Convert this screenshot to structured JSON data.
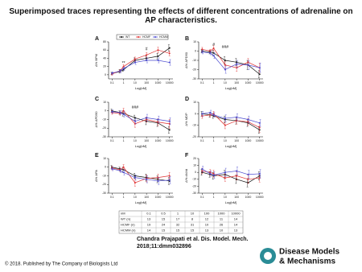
{
  "title": "Superimposed traces representing the effects of different concentrations of adrenaline on AP characteristics.",
  "citation": [
    "Chandra Prajapati et al. Dis. Model. Mech.",
    "2018;11:dmm032896"
  ],
  "copyright": "© 2018. Published by The Company of Biologists Ltd",
  "logo": [
    "Disease Models",
    "& Mechanisms"
  ],
  "table": {
    "header": [
      "nM",
      "0.1",
      "0.5",
      "1",
      "10",
      "100",
      "1000",
      "10000"
    ],
    "rows": [
      [
        "WT (n)",
        "13",
        "15",
        "17",
        "8",
        "12",
        "11",
        "14"
      ],
      [
        "HCMF (n)",
        "19",
        "24",
        "32",
        "31",
        "10",
        "26",
        "14"
      ],
      [
        "HCMM (n)",
        "14",
        "15",
        "15",
        "15",
        "13",
        "10",
        "13"
      ]
    ]
  },
  "chart_data": [
    {
      "type": "line",
      "panel": "A",
      "ylabel": "Δ% BPM",
      "xlabel": "Log[nM]",
      "log_x": true,
      "legend": "top",
      "x": [
        0.1,
        0.5,
        1,
        10,
        100,
        1000,
        10000
      ],
      "xlim": [
        0.05,
        20000
      ],
      "xticks": [
        0.1,
        1,
        10,
        100,
        1000,
        10000
      ],
      "ylim": [
        -10,
        80
      ],
      "yticks": [
        0,
        20,
        40,
        60,
        80
      ],
      "series": [
        {
          "name": "WT",
          "color": "#111111",
          "values": [
            3,
            8,
            12,
            35,
            40,
            45,
            65
          ],
          "errors": [
            3,
            4,
            4,
            6,
            6,
            7,
            8
          ]
        },
        {
          "name": "HCMF",
          "color": "#e03030",
          "values": [
            2,
            10,
            20,
            38,
            48,
            60,
            52
          ],
          "errors": [
            3,
            3,
            5,
            5,
            6,
            7,
            6
          ]
        },
        {
          "name": "HCMM",
          "color": "#4a4ad0",
          "values": [
            4,
            9,
            15,
            30,
            35,
            35,
            30
          ],
          "errors": [
            3,
            4,
            4,
            5,
            6,
            6,
            7
          ]
        }
      ],
      "annotations": [
        {
          "text": "**",
          "x": 1,
          "y": 28
        },
        {
          "text": "#",
          "x": 100,
          "y": 62
        }
      ]
    },
    {
      "type": "line",
      "panel": "B",
      "ylabel": "Δ% APD50",
      "xlabel": "Log[nM]",
      "log_x": true,
      "x": [
        0.1,
        0.5,
        1,
        10,
        100,
        1000,
        10000
      ],
      "xlim": [
        0.05,
        20000
      ],
      "xticks": [
        0.1,
        1,
        10,
        100,
        1000,
        10000
      ],
      "ylim": [
        -30,
        10
      ],
      "yticks": [
        -30,
        -20,
        -10,
        0,
        10
      ],
      "series": [
        {
          "color": "#111111",
          "values": [
            0,
            -1,
            -2,
            -10,
            -12,
            -15,
            -25
          ],
          "errors": [
            2,
            2,
            3,
            4,
            4,
            5,
            4
          ]
        },
        {
          "color": "#e03030",
          "values": [
            2,
            0,
            3,
            -15,
            -18,
            -12,
            -18
          ],
          "errors": [
            2,
            2,
            3,
            4,
            4,
            4,
            5
          ]
        },
        {
          "color": "#4a4ad0",
          "values": [
            -1,
            -2,
            -5,
            -20,
            -14,
            -15,
            -18
          ],
          "errors": [
            2,
            2,
            3,
            4,
            4,
            5,
            5
          ]
        }
      ],
      "annotations": [
        {
          "text": "#",
          "x": 1,
          "y": 7
        },
        {
          "text": "###",
          "x": 10,
          "y": 4
        }
      ]
    },
    {
      "type": "line",
      "panel": "C",
      "ylabel": "Δ% APD90",
      "xlabel": "Log[nM]",
      "log_x": true,
      "x": [
        0.1,
        0.5,
        1,
        10,
        100,
        1000,
        10000
      ],
      "xlim": [
        0.05,
        20000
      ],
      "xticks": [
        0.1,
        1,
        10,
        100,
        1000,
        10000
      ],
      "ylim": [
        -30,
        10
      ],
      "yticks": [
        -30,
        -20,
        -10,
        0,
        10
      ],
      "series": [
        {
          "color": "#111111",
          "values": [
            0,
            -2,
            -3,
            -8,
            -12,
            -14,
            -22
          ],
          "errors": [
            2,
            2,
            3,
            3,
            4,
            4,
            4
          ]
        },
        {
          "color": "#e03030",
          "values": [
            -2,
            -3,
            0,
            -15,
            -10,
            -13,
            -15
          ],
          "errors": [
            2,
            2,
            3,
            4,
            3,
            4,
            5
          ]
        },
        {
          "color": "#4a4ad0",
          "values": [
            -1,
            -2,
            -4,
            -12,
            -8,
            -10,
            -12
          ],
          "errors": [
            2,
            2,
            3,
            3,
            4,
            4,
            4
          ]
        }
      ],
      "annotations": [
        {
          "text": "###",
          "x": 10,
          "y": 4
        }
      ]
    },
    {
      "type": "line",
      "panel": "D",
      "ylabel": "Δ% MDP",
      "xlabel": "Log[nM]",
      "log_x": true,
      "x": [
        0.1,
        0.5,
        1,
        10,
        100,
        1000,
        10000
      ],
      "xlim": [
        0.05,
        20000
      ],
      "xticks": [
        0.1,
        1,
        10,
        100,
        1000,
        10000
      ],
      "ylim": [
        -20,
        10
      ],
      "yticks": [
        -20,
        -10,
        0,
        10
      ],
      "series": [
        {
          "color": "#111111",
          "values": [
            0,
            -1,
            -2,
            -5,
            -6,
            -8,
            -14
          ],
          "errors": [
            2,
            2,
            2,
            3,
            3,
            3,
            3
          ]
        },
        {
          "color": "#e03030",
          "values": [
            -2,
            -1,
            0,
            -10,
            -6,
            -7,
            -12
          ],
          "errors": [
            2,
            2,
            2,
            3,
            3,
            3,
            4
          ]
        },
        {
          "color": "#4a4ad0",
          "values": [
            0,
            1,
            -1,
            -4,
            -3,
            -5,
            -8
          ],
          "errors": [
            2,
            2,
            2,
            3,
            3,
            3,
            3
          ]
        }
      ]
    },
    {
      "type": "line",
      "panel": "E",
      "ylabel": "Δ% APA",
      "xlabel": "Log[nM]",
      "log_x": true,
      "x": [
        0.1,
        0.5,
        1,
        10,
        100,
        1000,
        10000
      ],
      "xlim": [
        0.05,
        20000
      ],
      "xticks": [
        0.1,
        1,
        10,
        100,
        1000,
        10000
      ],
      "ylim": [
        -30,
        10
      ],
      "yticks": [
        -30,
        -20,
        -10,
        0,
        10
      ],
      "series": [
        {
          "color": "#111111",
          "values": [
            0,
            -2,
            -3,
            -10,
            -12,
            -14,
            -16
          ],
          "errors": [
            2,
            2,
            3,
            3,
            4,
            4,
            4
          ]
        },
        {
          "color": "#e03030",
          "values": [
            -1,
            -3,
            0,
            -18,
            -13,
            -12,
            -10
          ],
          "errors": [
            2,
            2,
            3,
            4,
            4,
            4,
            4
          ]
        },
        {
          "color": "#4a4ad0",
          "values": [
            -2,
            -4,
            -6,
            -12,
            -14,
            -16,
            -15
          ],
          "errors": [
            2,
            2,
            3,
            3,
            4,
            4,
            4
          ]
        }
      ]
    },
    {
      "type": "line",
      "panel": "F",
      "ylabel": "Δ% dV/dt",
      "xlabel": "Log[nM]",
      "log_x": true,
      "x": [
        0.1,
        0.5,
        1,
        10,
        100,
        1000,
        10000
      ],
      "xlim": [
        0.05,
        20000
      ],
      "xticks": [
        0.1,
        1,
        10,
        100,
        1000,
        10000
      ],
      "ylim": [
        -30,
        20
      ],
      "yticks": [
        -30,
        -20,
        -10,
        0,
        10,
        20
      ],
      "series": [
        {
          "color": "#111111",
          "values": [
            0,
            -3,
            -5,
            -3,
            -10,
            -15,
            -5
          ],
          "errors": [
            4,
            4,
            5,
            6,
            6,
            6,
            6
          ]
        },
        {
          "color": "#e03030",
          "values": [
            2,
            0,
            -2,
            -8,
            -5,
            -10,
            -8
          ],
          "errors": [
            4,
            4,
            5,
            5,
            6,
            6,
            6
          ]
        },
        {
          "color": "#4a4ad0",
          "values": [
            5,
            -2,
            -4,
            0,
            2,
            -3,
            -2
          ],
          "errors": [
            4,
            4,
            5,
            6,
            6,
            6,
            6
          ]
        }
      ]
    }
  ]
}
